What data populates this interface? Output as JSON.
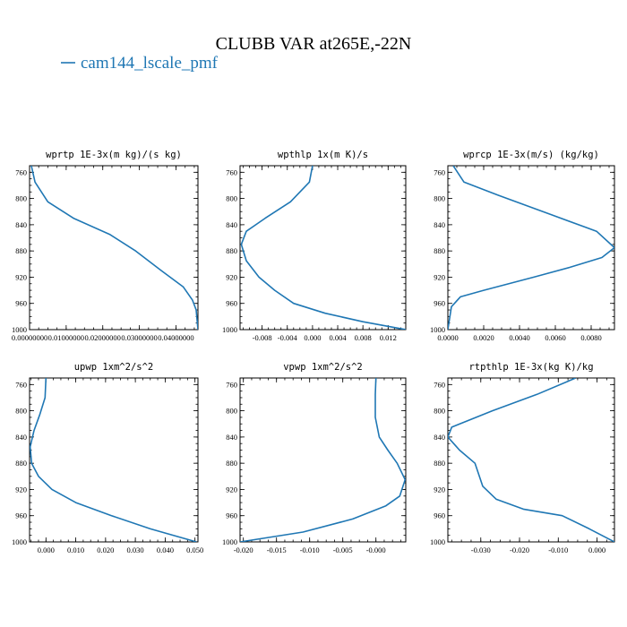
{
  "figure": {
    "title": "CLUBB VAR at265E,-22N",
    "legend_label": "cam144_lscale_pmf",
    "series_color": "#1f77b4"
  },
  "chart_data": [
    {
      "type": "line",
      "title": "wprtp  1E-3x(m kg)/(s kg)",
      "xlim": [
        0.0,
        0.046
      ],
      "ylim": [
        1000,
        750
      ],
      "xticks": [
        0.0,
        0.01,
        0.02,
        0.03,
        0.04
      ],
      "xtick_labels": [
        "0.00000000",
        "0.01000000",
        "0.02000000",
        "0.03000000",
        "0.04000000"
      ],
      "yticks": [
        760,
        800,
        840,
        880,
        920,
        960,
        1000
      ],
      "x": [
        0.0005,
        0.0015,
        0.005,
        0.012,
        0.022,
        0.029,
        0.036,
        0.042,
        0.0445,
        0.0455,
        0.046
      ],
      "y": [
        750,
        775,
        805,
        830,
        855,
        880,
        910,
        935,
        955,
        970,
        1000
      ]
    },
    {
      "type": "line",
      "title": "wpthlp  1x(m K)/s",
      "xlim": [
        -0.0115,
        0.0148
      ],
      "ylim": [
        1000,
        750
      ],
      "xticks": [
        -0.008,
        -0.004,
        0.0,
        0.004,
        0.008,
        0.012
      ],
      "xtick_labels": [
        "-0.008",
        "-0.004",
        "0.000",
        "0.004",
        "0.008",
        "0.012"
      ],
      "yticks": [
        760,
        800,
        840,
        880,
        920,
        960,
        1000
      ],
      "x": [
        0.0,
        -0.0005,
        -0.0035,
        -0.0075,
        -0.0105,
        -0.0113,
        -0.0105,
        -0.0085,
        -0.006,
        -0.003,
        0.002,
        0.008,
        0.0148
      ],
      "y": [
        750,
        775,
        805,
        830,
        850,
        870,
        895,
        920,
        940,
        960,
        975,
        988,
        1000
      ]
    },
    {
      "type": "line",
      "title": "wprcp  1E-3x(m/s) (kg/kg)",
      "xlim": [
        0.0,
        0.0093
      ],
      "ylim": [
        1000,
        750
      ],
      "xticks": [
        0.0,
        0.002,
        0.004,
        0.006,
        0.008
      ],
      "xtick_labels": [
        "0.0000",
        "0.0020",
        "0.0040",
        "0.0060",
        "0.0080"
      ],
      "yticks": [
        760,
        800,
        840,
        880,
        920,
        960,
        1000
      ],
      "x": [
        0.0003,
        0.0009,
        0.0028,
        0.0058,
        0.0083,
        0.0093,
        0.0086,
        0.0068,
        0.0048,
        0.002,
        0.0007,
        0.0002,
        0.0
      ],
      "y": [
        750,
        775,
        795,
        825,
        850,
        875,
        890,
        905,
        920,
        940,
        950,
        965,
        1000
      ]
    },
    {
      "type": "line",
      "title": "upwp  1xm^2/s^2",
      "xlim": [
        -0.0055,
        0.051
      ],
      "ylim": [
        1000,
        750
      ],
      "xticks": [
        0.0,
        0.01,
        0.02,
        0.03,
        0.04,
        0.05
      ],
      "xtick_labels": [
        "0.000",
        "0.010",
        "0.020",
        "0.030",
        "0.040",
        "0.050"
      ],
      "yticks": [
        760,
        800,
        840,
        880,
        920,
        960,
        1000
      ],
      "x": [
        0.0,
        -0.0003,
        -0.002,
        -0.004,
        -0.0053,
        -0.0048,
        -0.0025,
        0.002,
        0.01,
        0.022,
        0.035,
        0.0505
      ],
      "y": [
        750,
        780,
        805,
        830,
        855,
        880,
        900,
        920,
        940,
        960,
        980,
        1000
      ]
    },
    {
      "type": "line",
      "title": "vpwp  1xm^2/s^2",
      "xlim": [
        -0.0205,
        0.0045
      ],
      "ylim": [
        1000,
        750
      ],
      "xticks": [
        -0.02,
        -0.015,
        -0.01,
        -0.005,
        0.0
      ],
      "xtick_labels": [
        "-0.020",
        "-0.015",
        "-0.010",
        "-0.005",
        "-0.000"
      ],
      "yticks": [
        760,
        800,
        840,
        880,
        920,
        960,
        1000
      ],
      "x": [
        0.0,
        -0.0001,
        -0.0001,
        0.0005,
        0.0018,
        0.0032,
        0.0044,
        0.0036,
        0.0015,
        -0.0035,
        -0.011,
        -0.0205
      ],
      "y": [
        750,
        775,
        810,
        840,
        860,
        880,
        905,
        930,
        945,
        965,
        985,
        1000
      ]
    },
    {
      "type": "line",
      "title": "rtpthlp  1E-3x(kg K)/kg",
      "xlim": [
        -0.0385,
        0.0045
      ],
      "ylim": [
        1000,
        750
      ],
      "xticks": [
        -0.03,
        -0.02,
        -0.01,
        0.0
      ],
      "xtick_labels": [
        "-0.030",
        "-0.020",
        "-0.010",
        "0.000"
      ],
      "yticks": [
        760,
        800,
        840,
        880,
        920,
        960,
        1000
      ],
      "x": [
        -0.0055,
        -0.0155,
        -0.027,
        -0.0375,
        -0.0385,
        -0.0355,
        -0.0315,
        -0.0295,
        -0.026,
        -0.019,
        -0.009,
        -0.002,
        0.0045
      ],
      "y": [
        750,
        775,
        800,
        825,
        840,
        860,
        880,
        915,
        935,
        950,
        960,
        980,
        1000
      ]
    }
  ]
}
